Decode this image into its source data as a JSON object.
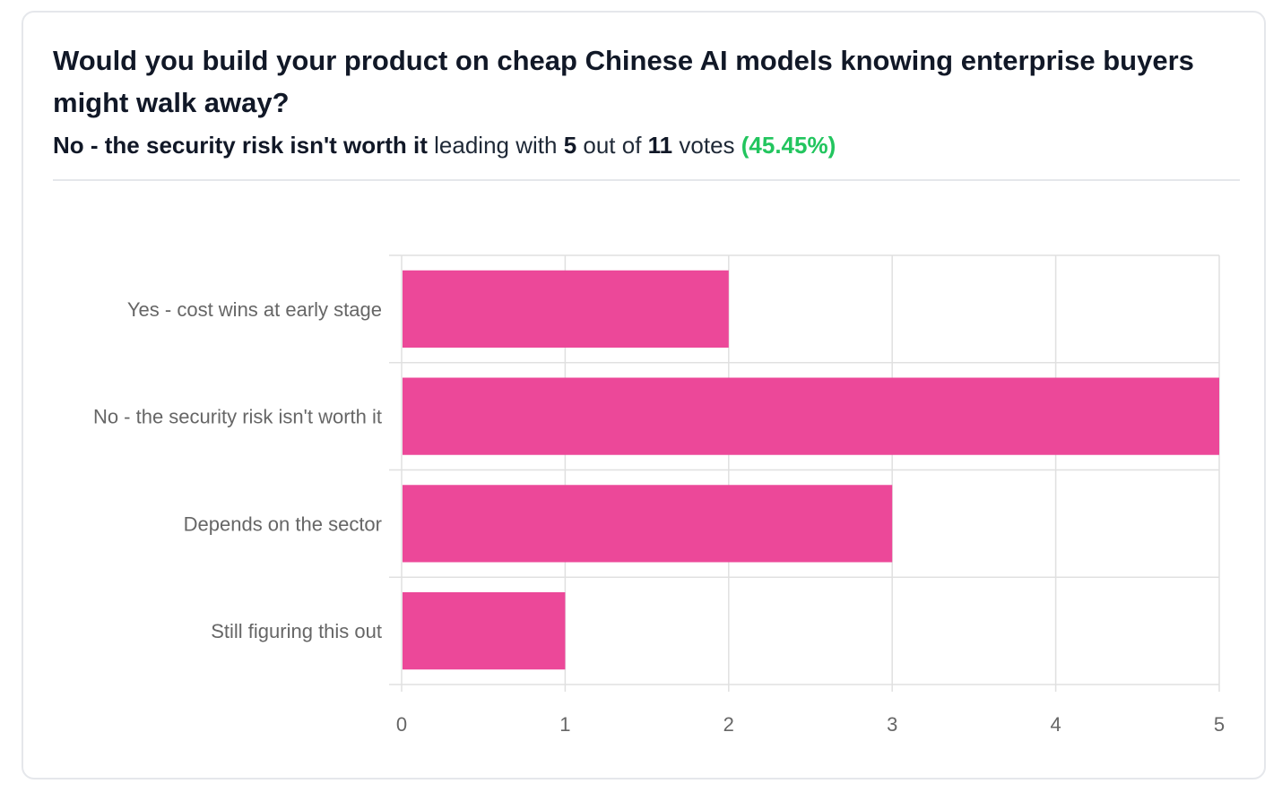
{
  "poll": {
    "question": "Would you build your product on cheap Chinese AI models knowing enterprise buyers might walk away?",
    "leader_option": "No - the security risk isn't worth it",
    "leading_with_text": " leading with ",
    "leader_votes": "5",
    "out_of_text": " out of ",
    "total_votes": "11",
    "votes_text": " votes ",
    "leader_percent": "(45.45%)"
  },
  "colors": {
    "bar": "#ec4899",
    "percent_text": "#22c55e",
    "grid": "#e0e0e0"
  },
  "chart_data": {
    "type": "bar",
    "orientation": "horizontal",
    "categories": [
      "Yes - cost wins at early stage",
      "No - the security risk isn't worth it",
      "Depends on the sector",
      "Still figuring this out"
    ],
    "values": [
      2,
      5,
      3,
      1
    ],
    "xlim": [
      0,
      5
    ],
    "xticks": [
      "0",
      "1",
      "2",
      "3",
      "4",
      "5"
    ],
    "grid": true,
    "legend": "none"
  }
}
